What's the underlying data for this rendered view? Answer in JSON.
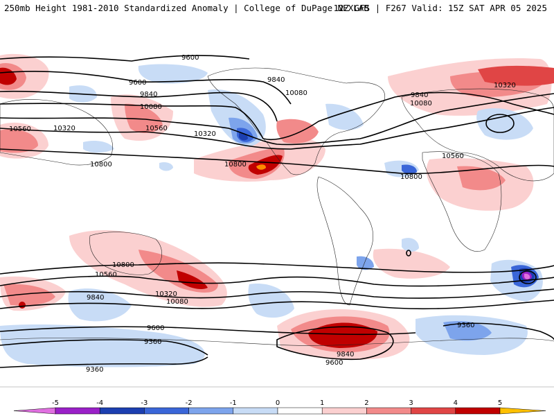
{
  "header": {
    "left": "250mb Height 1981-2010 Standardized Anomaly | College of DuPage NEXLAB",
    "right": "12Z GFS | F267 Valid: 15Z SAT APR 05 2025"
  },
  "contour_labels": [
    "9600",
    "9600",
    "9840",
    "10080",
    "10320",
    "10560",
    "10800",
    "9840",
    "10080",
    "10320",
    "10560",
    "10800",
    "9840",
    "10080",
    "10320",
    "10560",
    "10800",
    "9840",
    "10080",
    "10320",
    "10560",
    "10800",
    "9600",
    "9360",
    "9360",
    "9840",
    "9600",
    "9360"
  ],
  "colorbar": {
    "ticks": [
      "-5",
      "-4",
      "-3",
      "-2",
      "-1",
      "0",
      "1",
      "2",
      "3",
      "4",
      "5"
    ],
    "colors": [
      "#e070e0",
      "#9a20c8",
      "#1c3fb0",
      "#3a66d8",
      "#7da4ec",
      "#c8dcf6",
      "#ffffff",
      "#fbd0d0",
      "#f28a8a",
      "#e04545",
      "#c00000",
      "#ff8c00",
      "#ffc000"
    ]
  }
}
